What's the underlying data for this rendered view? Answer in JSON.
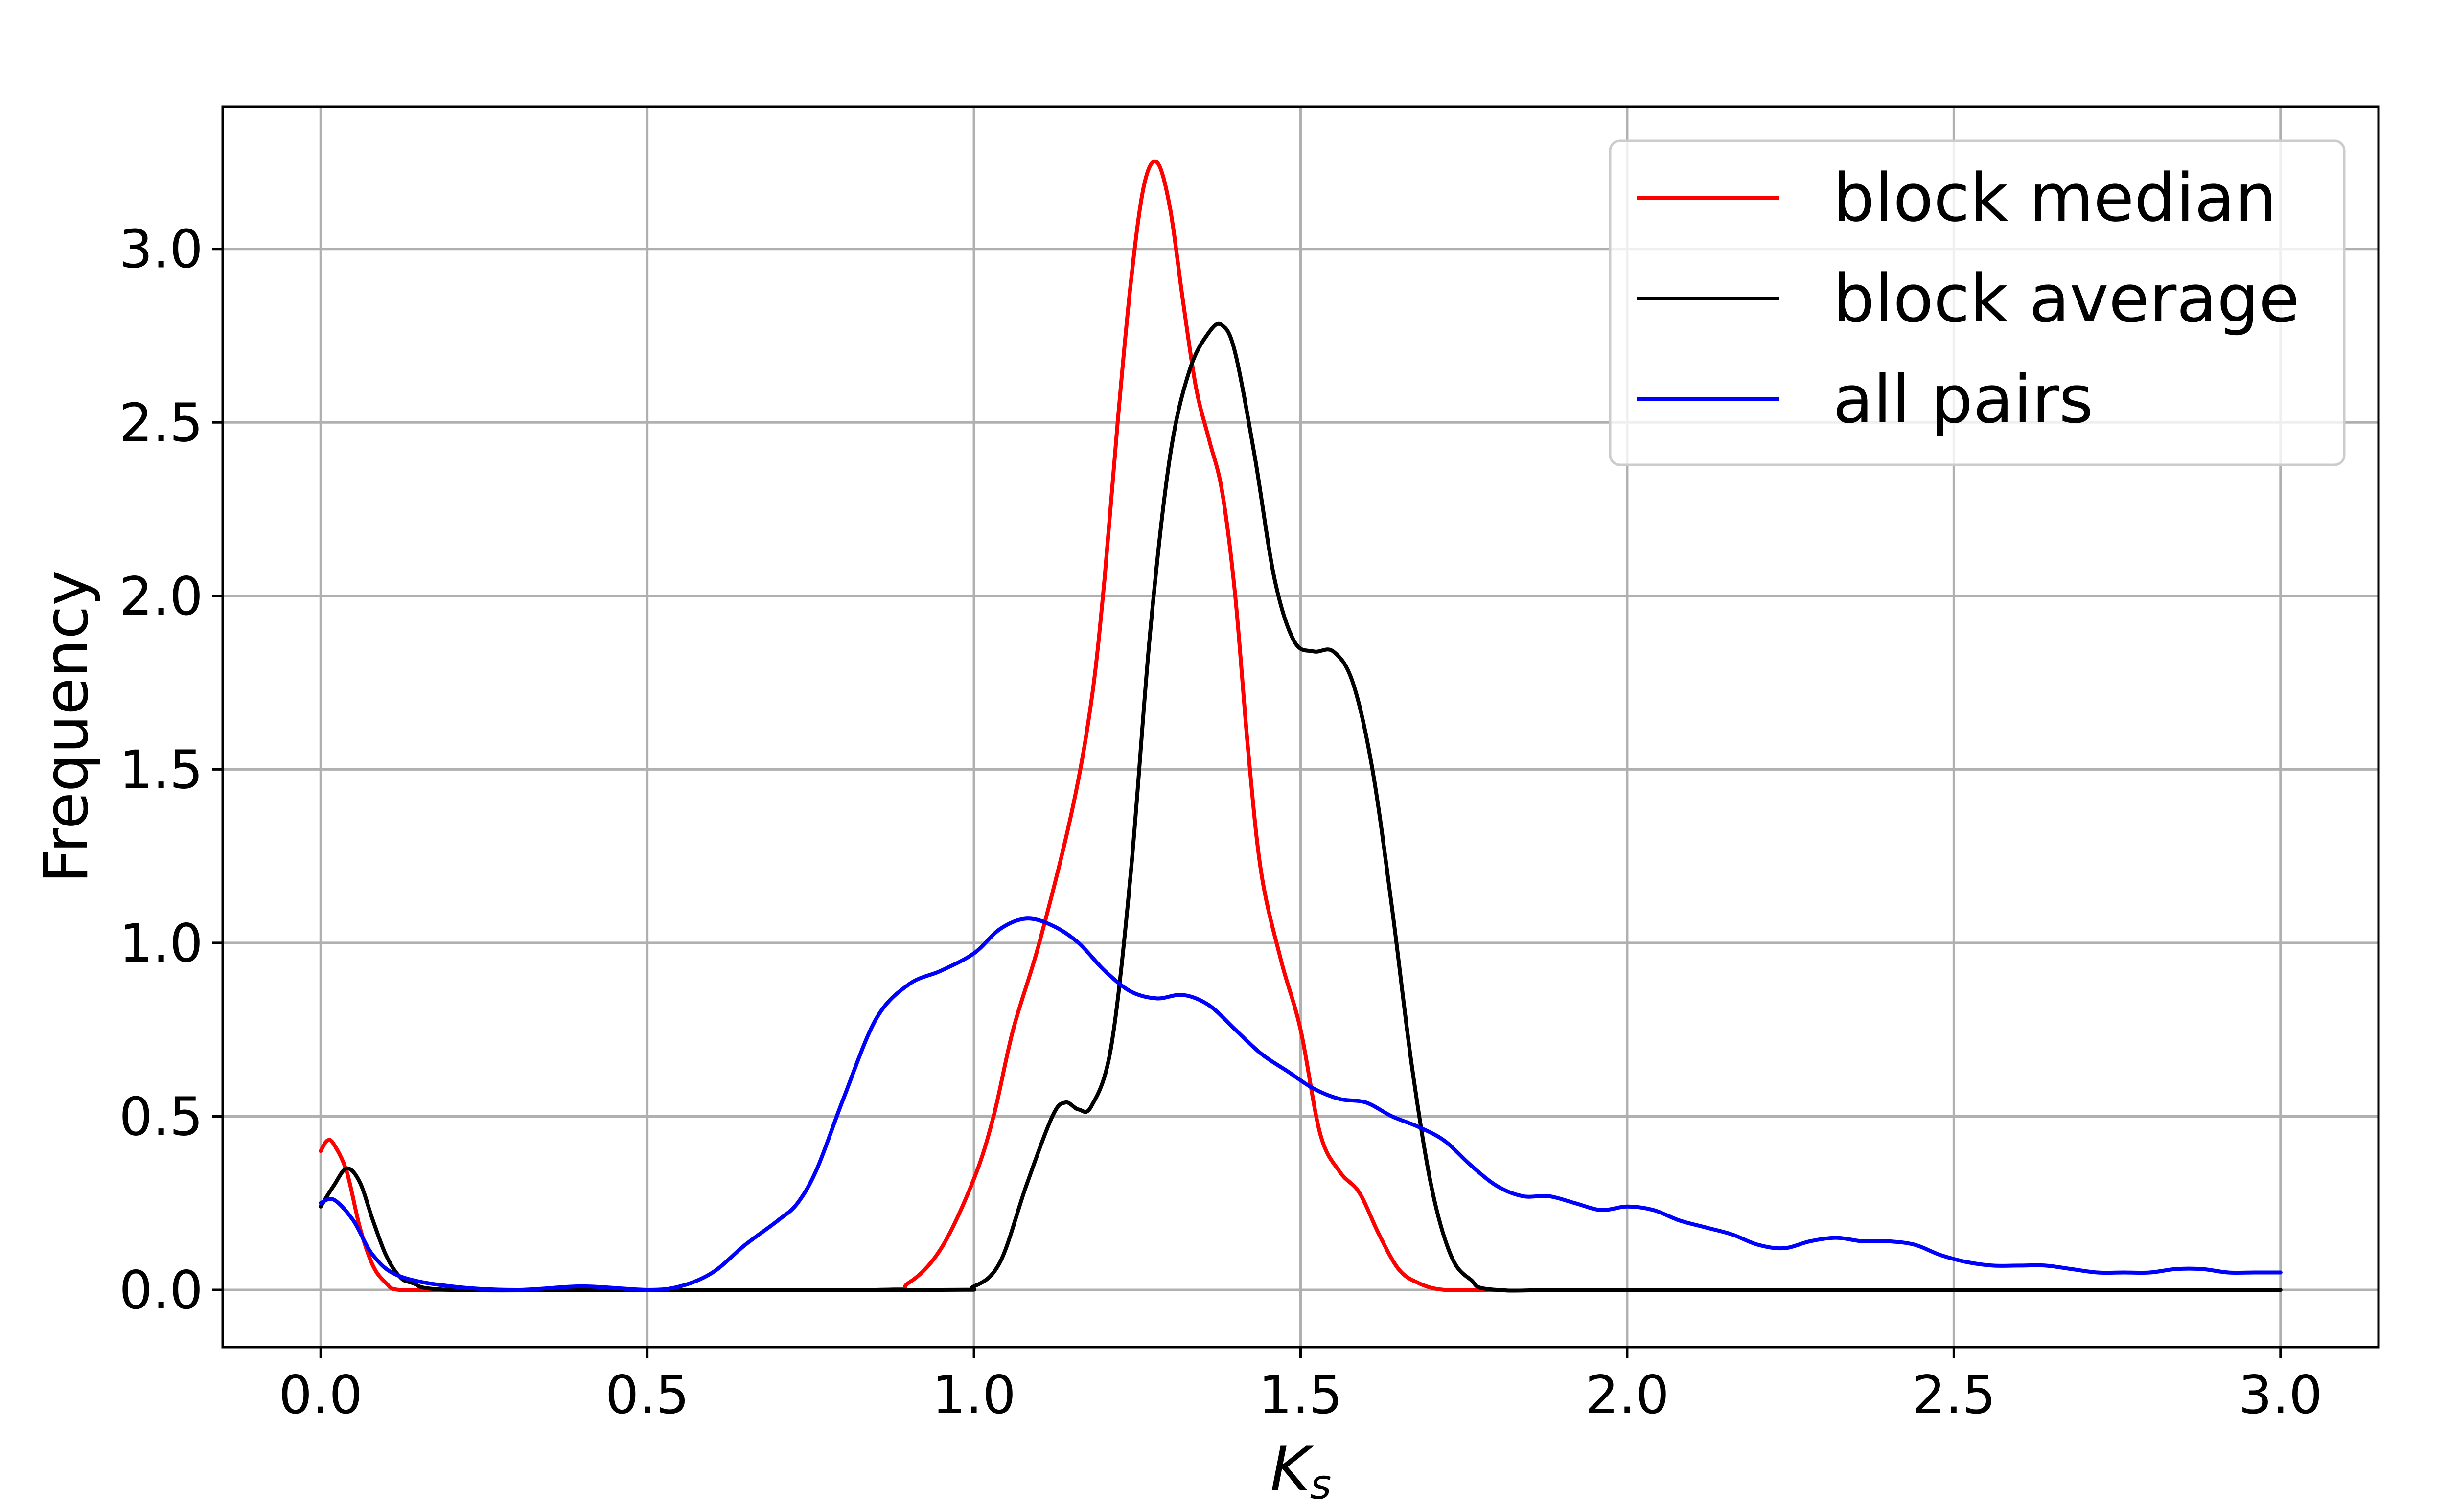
{
  "chart_data": {
    "type": "line",
    "title": "",
    "xlabel": "K",
    "xlabel_sub": "s",
    "ylabel": "Frequency",
    "xlim": [
      -0.15,
      3.15
    ],
    "ylim": [
      -0.165,
      3.41
    ],
    "xticks": [
      {
        "value": 0.0,
        "label": "0.0"
      },
      {
        "value": 0.5,
        "label": "0.5"
      },
      {
        "value": 1.0,
        "label": "1.0"
      },
      {
        "value": 1.5,
        "label": "1.5"
      },
      {
        "value": 2.0,
        "label": "2.0"
      },
      {
        "value": 2.5,
        "label": "2.5"
      },
      {
        "value": 3.0,
        "label": "3.0"
      }
    ],
    "yticks": [
      {
        "value": 0.0,
        "label": "0.0"
      },
      {
        "value": 0.5,
        "label": "0.5"
      },
      {
        "value": 1.0,
        "label": "1.0"
      },
      {
        "value": 1.5,
        "label": "1.5"
      },
      {
        "value": 2.0,
        "label": "2.0"
      },
      {
        "value": 2.5,
        "label": "2.5"
      },
      {
        "value": 3.0,
        "label": "3.0"
      }
    ],
    "grid": true,
    "legend_position": "top-right",
    "series": [
      {
        "name": "block median",
        "color": "#ff0000",
        "points": [
          [
            0,
            0.4
          ],
          [
            0.01,
            0.43
          ],
          [
            0.02,
            0.42
          ],
          [
            0.04,
            0.34
          ],
          [
            0.06,
            0.18
          ],
          [
            0.08,
            0.07
          ],
          [
            0.1,
            0.02
          ],
          [
            0.12,
            0.0
          ],
          [
            0.2,
            0.0
          ],
          [
            0.5,
            0.0
          ],
          [
            0.85,
            0.0
          ],
          [
            0.9,
            0.02
          ],
          [
            0.95,
            0.12
          ],
          [
            1.0,
            0.32
          ],
          [
            1.03,
            0.5
          ],
          [
            1.06,
            0.75
          ],
          [
            1.1,
            1.0
          ],
          [
            1.15,
            1.38
          ],
          [
            1.18,
            1.7
          ],
          [
            1.2,
            2.05
          ],
          [
            1.22,
            2.5
          ],
          [
            1.24,
            2.9
          ],
          [
            1.26,
            3.18
          ],
          [
            1.28,
            3.25
          ],
          [
            1.3,
            3.12
          ],
          [
            1.32,
            2.85
          ],
          [
            1.34,
            2.6
          ],
          [
            1.36,
            2.45
          ],
          [
            1.38,
            2.3
          ],
          [
            1.4,
            2.0
          ],
          [
            1.42,
            1.55
          ],
          [
            1.44,
            1.2
          ],
          [
            1.47,
            0.95
          ],
          [
            1.5,
            0.75
          ],
          [
            1.53,
            0.45
          ],
          [
            1.56,
            0.34
          ],
          [
            1.59,
            0.28
          ],
          [
            1.62,
            0.16
          ],
          [
            1.65,
            0.06
          ],
          [
            1.68,
            0.02
          ],
          [
            1.72,
            0.0
          ],
          [
            1.8,
            0.0
          ]
        ]
      },
      {
        "name": "block average",
        "color": "#000000",
        "points": [
          [
            0,
            0.24
          ],
          [
            0.02,
            0.3
          ],
          [
            0.04,
            0.35
          ],
          [
            0.06,
            0.31
          ],
          [
            0.08,
            0.2
          ],
          [
            0.1,
            0.1
          ],
          [
            0.12,
            0.04
          ],
          [
            0.14,
            0.02
          ],
          [
            0.2,
            0.0
          ],
          [
            0.5,
            0.0
          ],
          [
            0.95,
            0.0
          ],
          [
            1.0,
            0.01
          ],
          [
            1.04,
            0.08
          ],
          [
            1.08,
            0.3
          ],
          [
            1.12,
            0.5
          ],
          [
            1.14,
            0.54
          ],
          [
            1.16,
            0.52
          ],
          [
            1.18,
            0.53
          ],
          [
            1.21,
            0.7
          ],
          [
            1.24,
            1.2
          ],
          [
            1.27,
            1.9
          ],
          [
            1.3,
            2.4
          ],
          [
            1.33,
            2.65
          ],
          [
            1.36,
            2.76
          ],
          [
            1.38,
            2.78
          ],
          [
            1.4,
            2.7
          ],
          [
            1.43,
            2.4
          ],
          [
            1.46,
            2.05
          ],
          [
            1.49,
            1.87
          ],
          [
            1.52,
            1.84
          ],
          [
            1.55,
            1.84
          ],
          [
            1.58,
            1.75
          ],
          [
            1.61,
            1.5
          ],
          [
            1.64,
            1.1
          ],
          [
            1.67,
            0.65
          ],
          [
            1.7,
            0.3
          ],
          [
            1.73,
            0.1
          ],
          [
            1.76,
            0.03
          ],
          [
            1.8,
            0.0
          ],
          [
            2.0,
            0.0
          ],
          [
            3.0,
            0.0
          ]
        ]
      },
      {
        "name": "all pairs",
        "color": "#0000ff",
        "points": [
          [
            0,
            0.25
          ],
          [
            0.02,
            0.26
          ],
          [
            0.05,
            0.2
          ],
          [
            0.08,
            0.1
          ],
          [
            0.12,
            0.04
          ],
          [
            0.2,
            0.01
          ],
          [
            0.3,
            0.0
          ],
          [
            0.4,
            0.01
          ],
          [
            0.5,
            0.0
          ],
          [
            0.55,
            0.01
          ],
          [
            0.6,
            0.05
          ],
          [
            0.65,
            0.13
          ],
          [
            0.7,
            0.2
          ],
          [
            0.73,
            0.25
          ],
          [
            0.76,
            0.35
          ],
          [
            0.8,
            0.55
          ],
          [
            0.85,
            0.78
          ],
          [
            0.9,
            0.88
          ],
          [
            0.95,
            0.92
          ],
          [
            1.0,
            0.97
          ],
          [
            1.04,
            1.04
          ],
          [
            1.08,
            1.07
          ],
          [
            1.12,
            1.05
          ],
          [
            1.16,
            1.0
          ],
          [
            1.2,
            0.92
          ],
          [
            1.24,
            0.86
          ],
          [
            1.28,
            0.84
          ],
          [
            1.32,
            0.85
          ],
          [
            1.36,
            0.82
          ],
          [
            1.4,
            0.75
          ],
          [
            1.44,
            0.68
          ],
          [
            1.48,
            0.63
          ],
          [
            1.52,
            0.58
          ],
          [
            1.56,
            0.55
          ],
          [
            1.6,
            0.54
          ],
          [
            1.64,
            0.5
          ],
          [
            1.68,
            0.47
          ],
          [
            1.72,
            0.43
          ],
          [
            1.76,
            0.36
          ],
          [
            1.8,
            0.3
          ],
          [
            1.84,
            0.27
          ],
          [
            1.88,
            0.27
          ],
          [
            1.92,
            0.25
          ],
          [
            1.96,
            0.23
          ],
          [
            2.0,
            0.24
          ],
          [
            2.04,
            0.23
          ],
          [
            2.08,
            0.2
          ],
          [
            2.12,
            0.18
          ],
          [
            2.16,
            0.16
          ],
          [
            2.2,
            0.13
          ],
          [
            2.24,
            0.12
          ],
          [
            2.28,
            0.14
          ],
          [
            2.32,
            0.15
          ],
          [
            2.36,
            0.14
          ],
          [
            2.4,
            0.14
          ],
          [
            2.44,
            0.13
          ],
          [
            2.48,
            0.1
          ],
          [
            2.52,
            0.08
          ],
          [
            2.56,
            0.07
          ],
          [
            2.6,
            0.07
          ],
          [
            2.64,
            0.07
          ],
          [
            2.68,
            0.06
          ],
          [
            2.72,
            0.05
          ],
          [
            2.76,
            0.05
          ],
          [
            2.8,
            0.05
          ],
          [
            2.84,
            0.06
          ],
          [
            2.88,
            0.06
          ],
          [
            2.92,
            0.05
          ],
          [
            2.96,
            0.05
          ],
          [
            3.0,
            0.05
          ]
        ]
      }
    ]
  }
}
